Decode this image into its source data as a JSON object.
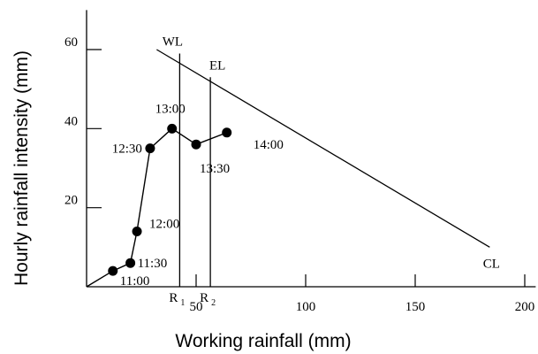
{
  "chart_data": {
    "type": "line",
    "xlabel": "Working rainfall (mm)",
    "ylabel": "Hourly rainfall intensity (mm)",
    "xlim": [
      0,
      205
    ],
    "ylim": [
      0,
      70
    ],
    "x_ticks": [
      {
        "value": 50,
        "label": "50"
      },
      {
        "value": 100,
        "label": "100"
      },
      {
        "value": 150,
        "label": "150"
      },
      {
        "value": 200,
        "label": "200"
      }
    ],
    "y_ticks": [
      {
        "value": 20,
        "label": "20"
      },
      {
        "value": 40,
        "label": "40"
      },
      {
        "value": 60,
        "label": "60"
      }
    ],
    "grid": false,
    "series": [
      {
        "points": [
          {
            "x": 0,
            "y": 0,
            "label": ""
          },
          {
            "x": 12,
            "y": 4,
            "label": "11:00"
          },
          {
            "x": 20,
            "y": 6,
            "label": "11:30"
          },
          {
            "x": 23,
            "y": 14,
            "label": "12:00"
          },
          {
            "x": 29,
            "y": 35,
            "label": "12:30"
          },
          {
            "x": 39,
            "y": 40,
            "label": "13:00"
          },
          {
            "x": 50,
            "y": 36,
            "label": "13:30"
          },
          {
            "x": 64,
            "y": 39,
            "label": "14:00"
          }
        ]
      }
    ],
    "vertical_lines": [
      {
        "name": "WL",
        "x": 42.5,
        "top": 59,
        "x_label": "R",
        "x_label_sub": "1"
      },
      {
        "name": "EL",
        "x": 56.5,
        "top": 53,
        "x_label": "R",
        "x_label_sub": "2"
      }
    ],
    "reference_lines": [
      {
        "name": "CL",
        "from": [
          32,
          60
        ],
        "to": [
          184,
          10
        ]
      }
    ],
    "colors": {
      "line": "#000000",
      "marker": "#000000"
    }
  }
}
